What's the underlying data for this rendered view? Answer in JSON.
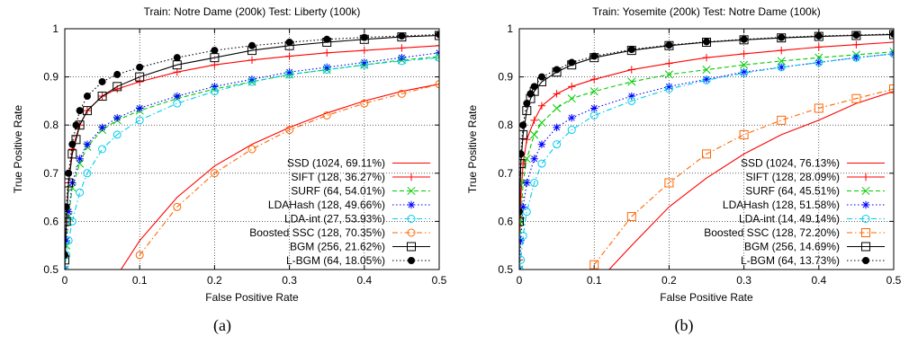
{
  "chart_data": [
    {
      "type": "line",
      "title": "Train: Notre Dame (200k) Test: Liberty (100k)",
      "xlabel": "False Positive Rate",
      "ylabel": "True Positive Rate",
      "xlim": [
        0,
        0.5
      ],
      "ylim": [
        0.5,
        1
      ],
      "xticks": [
        "0",
        "0.1",
        "0.2",
        "0.3",
        "0.4",
        "0.5"
      ],
      "yticks": [
        "0.5",
        "0.6",
        "0.7",
        "0.8",
        "0.9",
        "1"
      ],
      "grid": true,
      "legend_position": "bottom-right",
      "sublabel": "(a)",
      "series": [
        {
          "name": "SSD (1024, 69.11%)",
          "color": "#ff0000",
          "marker": "none",
          "dash": "solid",
          "x": [
            0.075,
            0.1,
            0.15,
            0.2,
            0.25,
            0.3,
            0.35,
            0.4,
            0.45,
            0.5
          ],
          "y": [
            0.5,
            0.56,
            0.65,
            0.715,
            0.76,
            0.795,
            0.825,
            0.85,
            0.87,
            0.885
          ]
        },
        {
          "name": "SIFT (128, 36.27%)",
          "color": "#ff0000",
          "marker": "plus",
          "dash": "solid",
          "x": [
            0.0,
            0.002,
            0.005,
            0.01,
            0.02,
            0.03,
            0.05,
            0.07,
            0.1,
            0.15,
            0.2,
            0.25,
            0.3,
            0.35,
            0.4,
            0.45,
            0.5
          ],
          "y": [
            0.5,
            0.6,
            0.68,
            0.75,
            0.8,
            0.83,
            0.86,
            0.875,
            0.89,
            0.91,
            0.925,
            0.935,
            0.943,
            0.95,
            0.955,
            0.96,
            0.965
          ]
        },
        {
          "name": "SURF (64, 54.01%)",
          "color": "#00cc00",
          "marker": "cross",
          "dash": "dashed",
          "x": [
            0.0,
            0.002,
            0.005,
            0.01,
            0.02,
            0.03,
            0.05,
            0.07,
            0.1,
            0.15,
            0.2,
            0.25,
            0.3,
            0.35,
            0.4,
            0.45,
            0.5
          ],
          "y": [
            0.5,
            0.55,
            0.61,
            0.67,
            0.72,
            0.755,
            0.79,
            0.81,
            0.83,
            0.855,
            0.875,
            0.89,
            0.905,
            0.915,
            0.925,
            0.935,
            0.942
          ]
        },
        {
          "name": "LDAHash (128, 49.66%)",
          "color": "#0000ff",
          "marker": "star",
          "dash": "dotted",
          "x": [
            0.0,
            0.002,
            0.005,
            0.01,
            0.02,
            0.03,
            0.05,
            0.07,
            0.1,
            0.15,
            0.2,
            0.25,
            0.3,
            0.35,
            0.4,
            0.45,
            0.5
          ],
          "y": [
            0.5,
            0.56,
            0.62,
            0.68,
            0.73,
            0.76,
            0.795,
            0.815,
            0.835,
            0.86,
            0.88,
            0.895,
            0.91,
            0.92,
            0.93,
            0.94,
            0.95
          ]
        },
        {
          "name": "LDA-int (27, 53.93%)",
          "color": "#00ccee",
          "marker": "circle",
          "dash": "dashdot",
          "x": [
            0.0,
            0.002,
            0.005,
            0.01,
            0.02,
            0.03,
            0.05,
            0.07,
            0.1,
            0.15,
            0.2,
            0.25,
            0.3,
            0.35,
            0.4,
            0.45,
            0.5
          ],
          "y": [
            0.5,
            0.53,
            0.56,
            0.6,
            0.66,
            0.7,
            0.75,
            0.78,
            0.81,
            0.845,
            0.87,
            0.89,
            0.905,
            0.915,
            0.925,
            0.933,
            0.94
          ]
        },
        {
          "name": "Boosted SSC (128, 70.35%)",
          "color": "#ff6600",
          "marker": "circle",
          "dash": "dashdot",
          "x": [
            0.1,
            0.15,
            0.2,
            0.25,
            0.3,
            0.35,
            0.4,
            0.45,
            0.5
          ],
          "y": [
            0.53,
            0.63,
            0.7,
            0.75,
            0.79,
            0.82,
            0.845,
            0.865,
            0.885
          ]
        },
        {
          "name": "BGM (256, 21.62%)",
          "color": "#000000",
          "marker": "square",
          "dash": "solid",
          "x": [
            0.0,
            0.002,
            0.005,
            0.01,
            0.015,
            0.02,
            0.03,
            0.05,
            0.07,
            0.1,
            0.15,
            0.2,
            0.25,
            0.3,
            0.35,
            0.4,
            0.45,
            0.5
          ],
          "y": [
            0.52,
            0.6,
            0.68,
            0.74,
            0.77,
            0.8,
            0.83,
            0.86,
            0.88,
            0.9,
            0.925,
            0.94,
            0.955,
            0.965,
            0.972,
            0.978,
            0.983,
            0.986
          ]
        },
        {
          "name": "L-BGM (64, 18.05%)",
          "color": "#000000",
          "marker": "dot",
          "dash": "dotted",
          "x": [
            0.0,
            0.002,
            0.005,
            0.01,
            0.015,
            0.02,
            0.03,
            0.05,
            0.07,
            0.1,
            0.15,
            0.2,
            0.25,
            0.3,
            0.35,
            0.4,
            0.45,
            0.5
          ],
          "y": [
            0.53,
            0.63,
            0.7,
            0.76,
            0.8,
            0.83,
            0.86,
            0.89,
            0.905,
            0.92,
            0.94,
            0.955,
            0.965,
            0.972,
            0.978,
            0.982,
            0.985,
            0.988
          ]
        }
      ]
    },
    {
      "type": "line",
      "title": "Train: Yosemite (200k) Test: Notre Dame (100k)",
      "xlabel": "False Positive Rate",
      "ylabel": "True Positive Rate",
      "xlim": [
        0,
        0.5
      ],
      "ylim": [
        0.5,
        1
      ],
      "xticks": [
        "0",
        "0.1",
        "0.2",
        "0.3",
        "0.4",
        "0.5"
      ],
      "yticks": [
        "0.5",
        "0.6",
        "0.7",
        "0.8",
        "0.9",
        "1"
      ],
      "grid": true,
      "legend_position": "bottom-right",
      "sublabel": "(b)",
      "series": [
        {
          "name": "SSD (1024, 76.13%)",
          "color": "#ff0000",
          "marker": "none",
          "dash": "solid",
          "x": [
            0.12,
            0.15,
            0.2,
            0.25,
            0.3,
            0.35,
            0.4,
            0.45,
            0.5
          ],
          "y": [
            0.5,
            0.55,
            0.63,
            0.69,
            0.74,
            0.78,
            0.81,
            0.845,
            0.87
          ]
        },
        {
          "name": "SIFT (128, 28.09%)",
          "color": "#ff0000",
          "marker": "plus",
          "dash": "solid",
          "x": [
            0.0,
            0.002,
            0.005,
            0.01,
            0.02,
            0.03,
            0.05,
            0.07,
            0.1,
            0.15,
            0.2,
            0.25,
            0.3,
            0.35,
            0.4,
            0.45,
            0.5
          ],
          "y": [
            0.52,
            0.65,
            0.72,
            0.77,
            0.81,
            0.84,
            0.865,
            0.88,
            0.895,
            0.915,
            0.928,
            0.94,
            0.948,
            0.955,
            0.962,
            0.967,
            0.972
          ]
        },
        {
          "name": "SURF (64, 45.51%)",
          "color": "#00cc00",
          "marker": "cross",
          "dash": "dashed",
          "x": [
            0.0,
            0.002,
            0.005,
            0.01,
            0.02,
            0.03,
            0.05,
            0.07,
            0.1,
            0.15,
            0.2,
            0.25,
            0.3,
            0.35,
            0.4,
            0.45,
            0.5
          ],
          "y": [
            0.5,
            0.6,
            0.68,
            0.73,
            0.78,
            0.805,
            0.835,
            0.855,
            0.87,
            0.89,
            0.905,
            0.915,
            0.925,
            0.933,
            0.94,
            0.946,
            0.952
          ]
        },
        {
          "name": "LDAHash (128, 51.58%)",
          "color": "#0000ff",
          "marker": "star",
          "dash": "dotted",
          "x": [
            0.0,
            0.002,
            0.005,
            0.01,
            0.02,
            0.03,
            0.05,
            0.07,
            0.1,
            0.15,
            0.2,
            0.25,
            0.3,
            0.35,
            0.4,
            0.45,
            0.5
          ],
          "y": [
            0.5,
            0.56,
            0.63,
            0.68,
            0.73,
            0.76,
            0.795,
            0.815,
            0.835,
            0.86,
            0.88,
            0.895,
            0.91,
            0.92,
            0.93,
            0.94,
            0.948
          ]
        },
        {
          "name": "LDA-int (14, 49.14%)",
          "color": "#00ccee",
          "marker": "circle",
          "dash": "dashdot",
          "x": [
            0.0,
            0.002,
            0.005,
            0.01,
            0.02,
            0.03,
            0.05,
            0.07,
            0.1,
            0.15,
            0.2,
            0.25,
            0.3,
            0.35,
            0.4,
            0.45,
            0.5
          ],
          "y": [
            0.5,
            0.52,
            0.57,
            0.62,
            0.68,
            0.72,
            0.76,
            0.79,
            0.82,
            0.85,
            0.875,
            0.893,
            0.908,
            0.92,
            0.93,
            0.94,
            0.948
          ]
        },
        {
          "name": "Boosted SSC (128, 72.20%)",
          "color": "#ff6600",
          "marker": "square",
          "dash": "dashdot",
          "x": [
            0.1,
            0.15,
            0.2,
            0.25,
            0.3,
            0.35,
            0.4,
            0.45,
            0.5
          ],
          "y": [
            0.51,
            0.61,
            0.68,
            0.74,
            0.78,
            0.81,
            0.835,
            0.855,
            0.875
          ]
        },
        {
          "name": "BGM (256, 14.69%)",
          "color": "#000000",
          "marker": "square",
          "dash": "solid",
          "x": [
            0.0,
            0.002,
            0.005,
            0.01,
            0.015,
            0.02,
            0.03,
            0.05,
            0.07,
            0.1,
            0.15,
            0.2,
            0.25,
            0.3,
            0.35,
            0.4,
            0.45,
            0.5
          ],
          "y": [
            0.6,
            0.72,
            0.78,
            0.83,
            0.855,
            0.87,
            0.89,
            0.91,
            0.925,
            0.94,
            0.955,
            0.965,
            0.972,
            0.977,
            0.981,
            0.984,
            0.986,
            0.988
          ]
        },
        {
          "name": "L-BGM (64, 13.73%)",
          "color": "#000000",
          "marker": "dot",
          "dash": "dotted",
          "x": [
            0.0,
            0.002,
            0.005,
            0.01,
            0.015,
            0.02,
            0.03,
            0.05,
            0.07,
            0.1,
            0.15,
            0.2,
            0.25,
            0.3,
            0.35,
            0.4,
            0.45,
            0.5
          ],
          "y": [
            0.62,
            0.74,
            0.8,
            0.845,
            0.865,
            0.88,
            0.9,
            0.915,
            0.93,
            0.943,
            0.957,
            0.966,
            0.973,
            0.978,
            0.982,
            0.985,
            0.987,
            0.989
          ]
        }
      ]
    }
  ]
}
